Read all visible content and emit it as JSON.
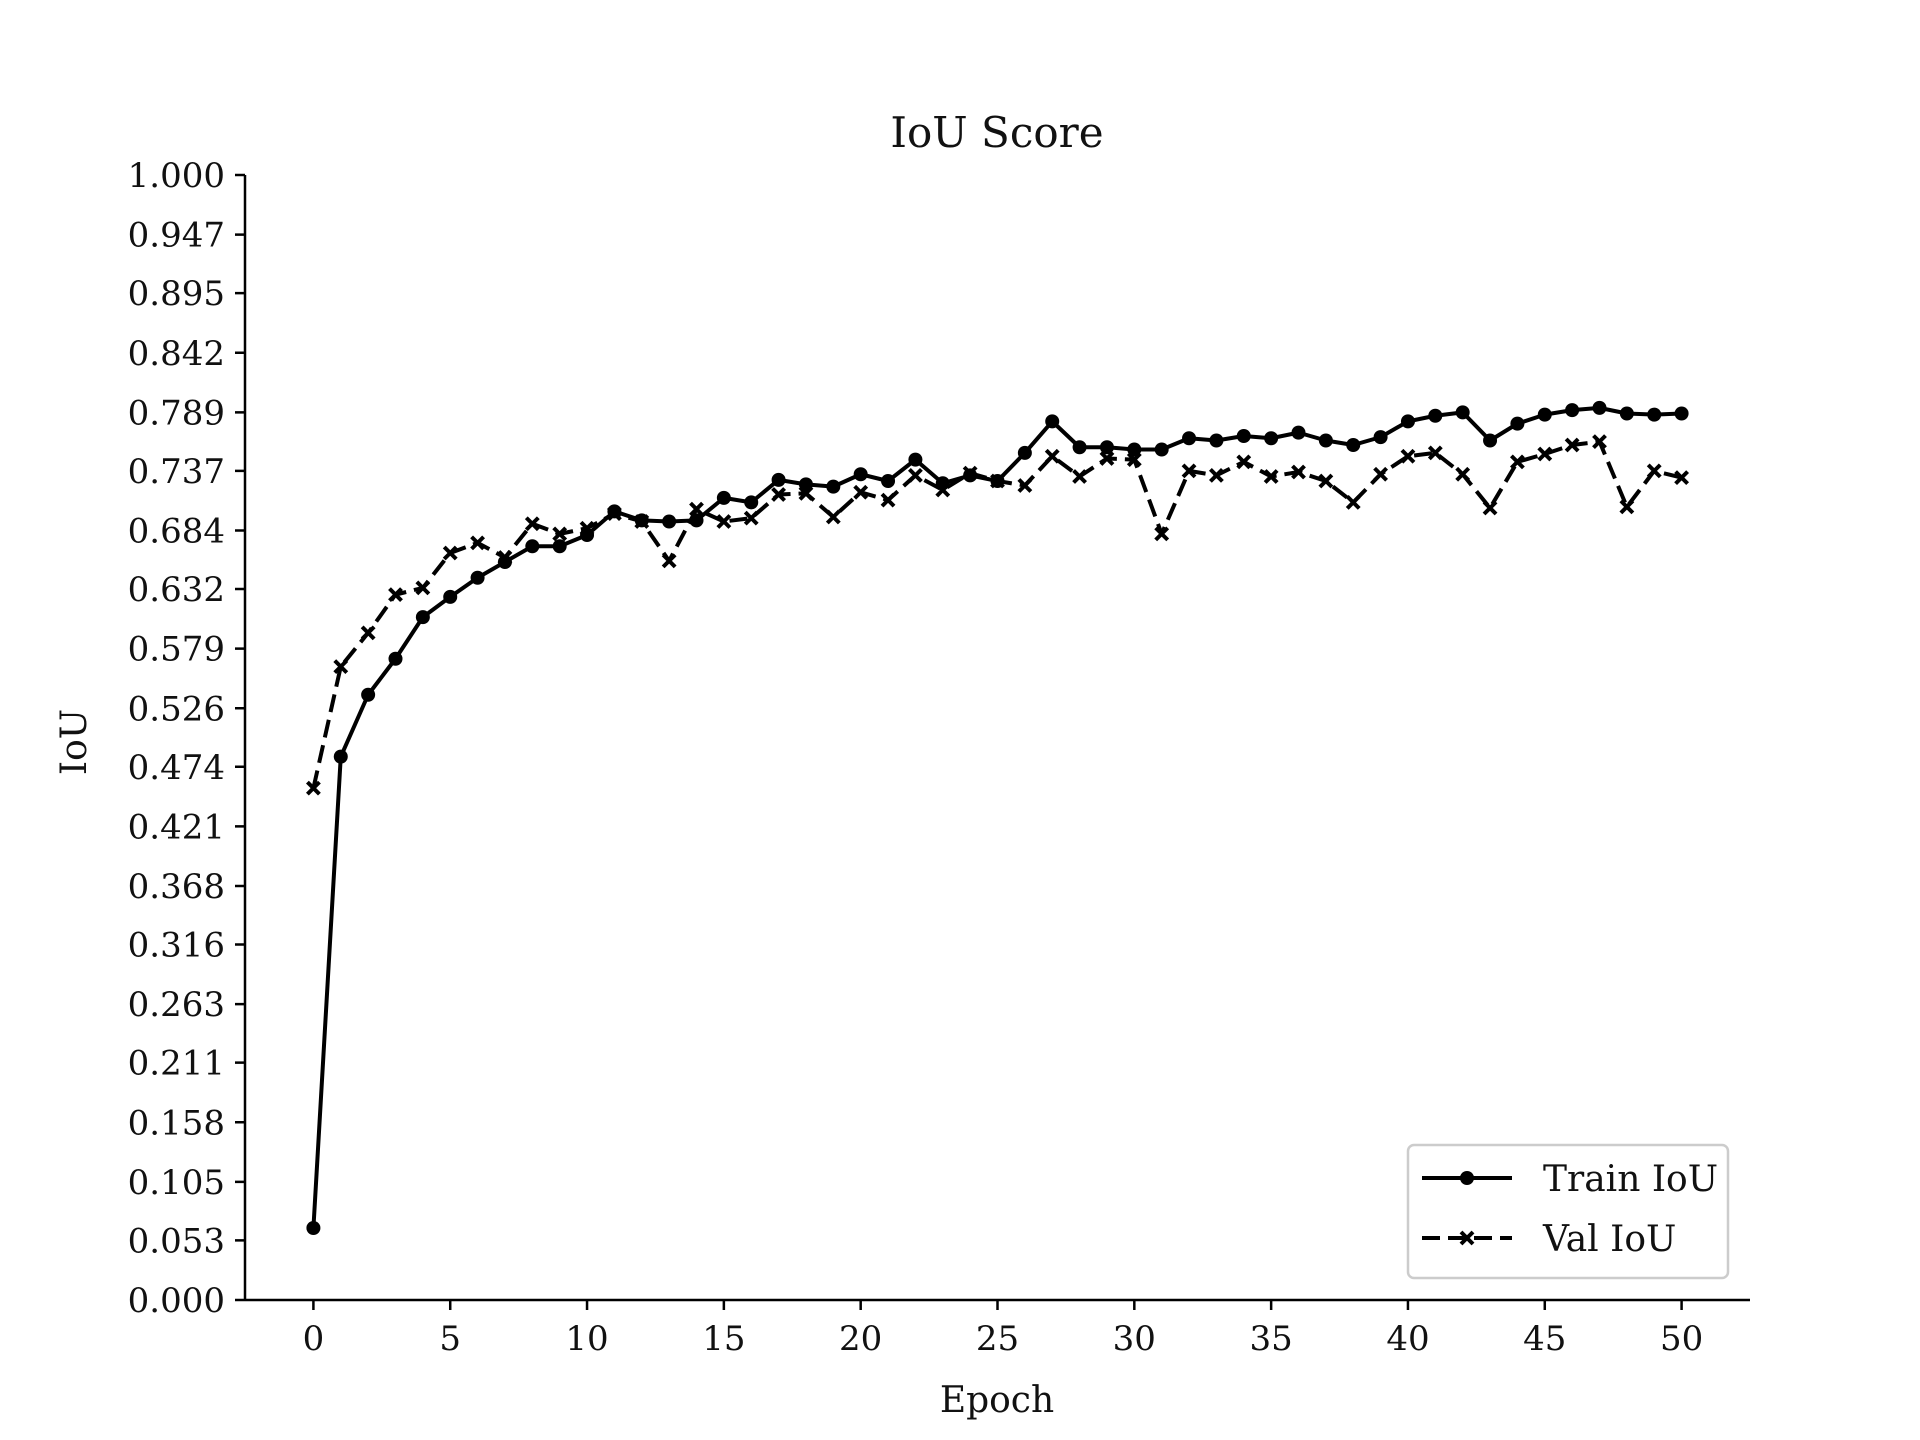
{
  "chart_data": {
    "type": "line",
    "title": "IoU Score",
    "xlabel": "Epoch",
    "ylabel": "IoU",
    "xlim": [
      -2.5,
      52.5
    ],
    "ylim": [
      0,
      1
    ],
    "xticks": [
      0,
      5,
      10,
      15,
      20,
      25,
      30,
      35,
      40,
      45,
      50
    ],
    "yticks": [
      "0.000",
      "0.053",
      "0.105",
      "0.158",
      "0.211",
      "0.263",
      "0.316",
      "0.368",
      "0.421",
      "0.474",
      "0.526",
      "0.579",
      "0.632",
      "0.684",
      "0.737",
      "0.789",
      "0.842",
      "0.895",
      "0.947",
      "1.000"
    ],
    "grid": false,
    "legend_position": "lower-right",
    "x": [
      0,
      1,
      2,
      3,
      4,
      5,
      6,
      7,
      8,
      9,
      10,
      11,
      12,
      13,
      14,
      15,
      16,
      17,
      18,
      19,
      20,
      21,
      22,
      23,
      24,
      25,
      26,
      27,
      28,
      29,
      30,
      31,
      32,
      33,
      34,
      35,
      36,
      37,
      38,
      39,
      40,
      41,
      42,
      43,
      44,
      45,
      46,
      47,
      48,
      49,
      50
    ],
    "series": [
      {
        "name": "Train IoU",
        "style": "solid",
        "marker": "circle",
        "color": "#000000",
        "values": [
          0.064,
          0.483,
          0.538,
          0.57,
          0.607,
          0.625,
          0.642,
          0.656,
          0.67,
          0.67,
          0.68,
          0.701,
          0.693,
          0.692,
          0.693,
          0.713,
          0.709,
          0.729,
          0.725,
          0.723,
          0.734,
          0.728,
          0.747,
          0.726,
          0.733,
          0.728,
          0.753,
          0.781,
          0.758,
          0.758,
          0.756,
          0.756,
          0.766,
          0.764,
          0.768,
          0.766,
          0.771,
          0.764,
          0.76,
          0.767,
          0.781,
          0.786,
          0.789,
          0.764,
          0.779,
          0.787,
          0.791,
          0.793,
          0.788,
          0.787,
          0.788
        ]
      },
      {
        "name": "Val IoU",
        "style": "dashed",
        "marker": "x",
        "color": "#000000",
        "values": [
          0.455,
          0.563,
          0.593,
          0.627,
          0.633,
          0.664,
          0.673,
          0.66,
          0.69,
          0.681,
          0.686,
          0.699,
          0.692,
          0.657,
          0.703,
          0.692,
          0.695,
          0.716,
          0.717,
          0.696,
          0.718,
          0.711,
          0.733,
          0.72,
          0.735,
          0.728,
          0.724,
          0.75,
          0.732,
          0.748,
          0.747,
          0.681,
          0.737,
          0.733,
          0.745,
          0.732,
          0.736,
          0.728,
          0.709,
          0.734,
          0.75,
          0.753,
          0.734,
          0.704,
          0.745,
          0.752,
          0.76,
          0.763,
          0.705,
          0.737,
          0.731
        ]
      }
    ]
  }
}
